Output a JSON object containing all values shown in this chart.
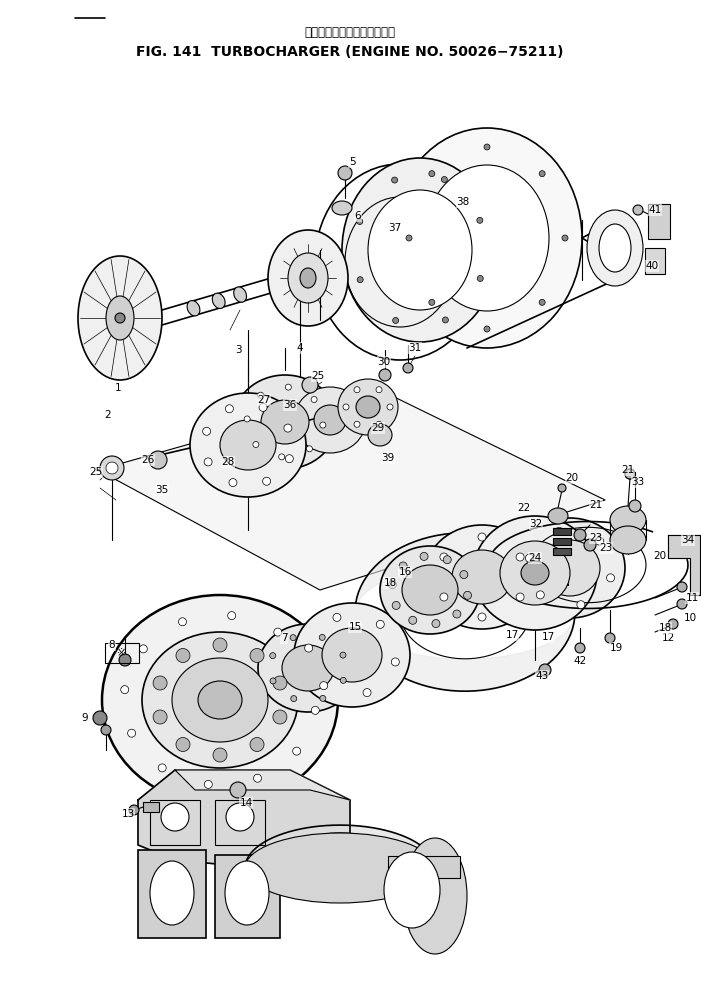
{
  "title_japanese": "ターボチャージャ　適用号機",
  "title_english": "FIG. 141  TURBOCHARGER (ENGINE NO. 50026−75211)",
  "bg_color": "#ffffff",
  "line_color": "#000000",
  "fig_width": 7.01,
  "fig_height": 9.86,
  "dpi": 100
}
